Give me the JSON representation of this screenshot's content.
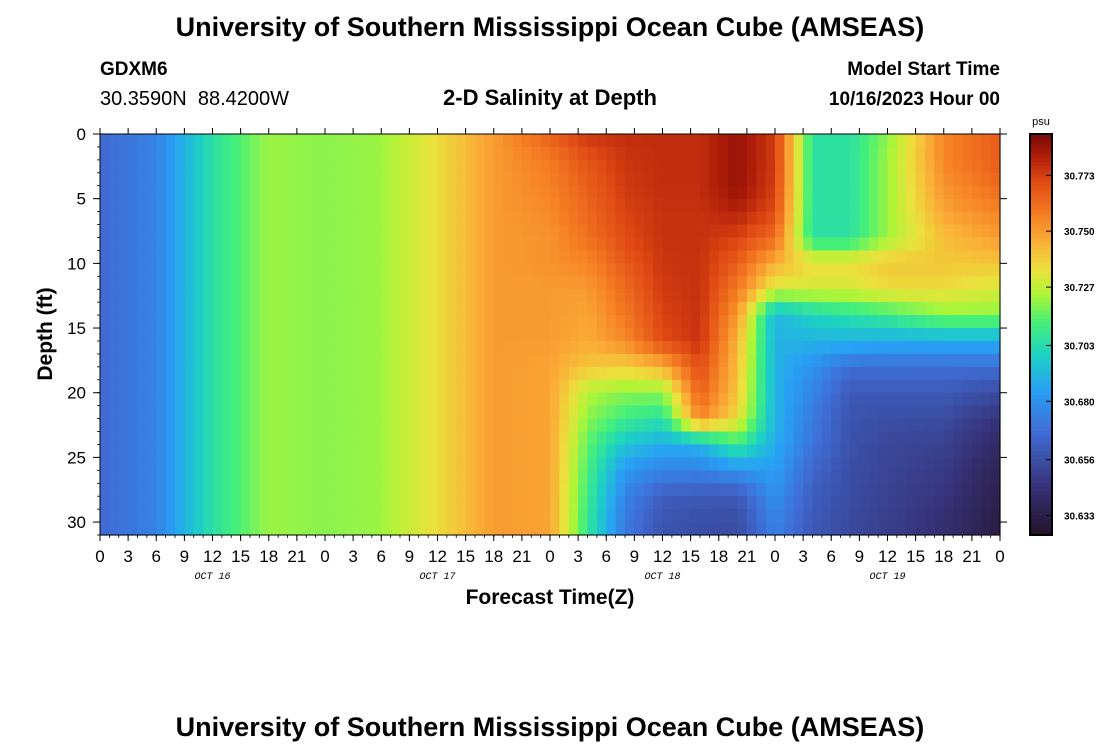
{
  "header": {
    "title": "University of Southern Mississippi Ocean Cube (AMSEAS)",
    "station_id": "GDXM6",
    "station_coords": "30.3590N  88.4200W",
    "subtitle": "2-D Salinity at Depth",
    "model_start_label": "Model Start Time",
    "model_start_value": "10/16/2023 Hour 00"
  },
  "footer": {
    "title": "University of Southern Mississippi Ocean Cube (AMSEAS)"
  },
  "chart_data": {
    "type": "heatmap",
    "title": "2-D Salinity at Depth",
    "xlabel": "Forecast Time(Z)",
    "ylabel": "Depth (ft)",
    "xlim": [
      0,
      96
    ],
    "ylim": [
      0,
      31
    ],
    "x_ticks": [
      0,
      3,
      6,
      9,
      12,
      15,
      18,
      21,
      24,
      27,
      30,
      33,
      36,
      39,
      42,
      45,
      48,
      51,
      54,
      57,
      60,
      63,
      66,
      69,
      72,
      75,
      78,
      81,
      84,
      87,
      90,
      93,
      96
    ],
    "x_tick_labels": [
      "0",
      "3",
      "6",
      "9",
      "12",
      "15",
      "18",
      "21",
      "0",
      "3",
      "6",
      "9",
      "12",
      "15",
      "18",
      "21",
      "0",
      "3",
      "6",
      "9",
      "12",
      "15",
      "18",
      "21",
      "0",
      "3",
      "6",
      "9",
      "12",
      "15",
      "18",
      "21",
      "0"
    ],
    "date_labels": [
      {
        "x": 12,
        "label": "OCT 16"
      },
      {
        "x": 36,
        "label": "OCT 17"
      },
      {
        "x": 60,
        "label": "OCT 18"
      },
      {
        "x": 84,
        "label": "OCT 19"
      }
    ],
    "y_ticks": [
      0,
      5,
      10,
      15,
      20,
      25,
      30
    ],
    "y_tick_labels": [
      "0",
      "5",
      "10",
      "15",
      "20",
      "25",
      "30"
    ],
    "colorbar": {
      "units": "psu",
      "min": 30.625,
      "max": 30.79,
      "ticks": [
        30.773,
        30.75,
        30.727,
        30.703,
        30.68,
        30.656,
        30.633
      ],
      "tick_labels": [
        "30.773",
        "30.750",
        "30.727",
        "30.703",
        "30.680",
        "30.656",
        "30.633"
      ]
    },
    "depths": [
      0,
      2,
      4,
      6,
      8,
      10,
      12,
      14,
      16,
      18,
      20,
      22,
      24,
      26,
      28,
      30
    ],
    "times": [
      0,
      6,
      12,
      18,
      24,
      30,
      36,
      42,
      48,
      52,
      56,
      60,
      64,
      68,
      72,
      76,
      80,
      84,
      90,
      96
    ],
    "values": [
      [
        30.666,
        30.675,
        30.705,
        30.722,
        30.72,
        30.722,
        30.735,
        30.75,
        30.765,
        30.775,
        30.777,
        30.777,
        30.777,
        30.785,
        30.774,
        30.705,
        30.705,
        30.72,
        30.755,
        30.766
      ],
      [
        30.666,
        30.675,
        30.705,
        30.722,
        30.72,
        30.722,
        30.735,
        30.75,
        30.758,
        30.768,
        30.775,
        30.777,
        30.777,
        30.785,
        30.774,
        30.705,
        30.705,
        30.722,
        30.755,
        30.766
      ],
      [
        30.666,
        30.675,
        30.705,
        30.722,
        30.72,
        30.722,
        30.735,
        30.75,
        30.756,
        30.765,
        30.774,
        30.777,
        30.777,
        30.785,
        30.773,
        30.705,
        30.705,
        30.722,
        30.752,
        30.762
      ],
      [
        30.666,
        30.675,
        30.705,
        30.722,
        30.72,
        30.722,
        30.735,
        30.75,
        30.754,
        30.763,
        30.772,
        30.776,
        30.776,
        30.78,
        30.77,
        30.705,
        30.705,
        30.722,
        30.748,
        30.756
      ],
      [
        30.666,
        30.675,
        30.705,
        30.722,
        30.72,
        30.722,
        30.735,
        30.75,
        30.752,
        30.76,
        30.77,
        30.776,
        30.776,
        30.772,
        30.762,
        30.705,
        30.705,
        30.722,
        30.742,
        30.75
      ],
      [
        30.666,
        30.675,
        30.705,
        30.722,
        30.72,
        30.722,
        30.735,
        30.75,
        30.752,
        30.755,
        30.766,
        30.775,
        30.776,
        30.765,
        30.745,
        30.735,
        30.735,
        30.74,
        30.74,
        30.74
      ],
      [
        30.666,
        30.675,
        30.705,
        30.722,
        30.72,
        30.722,
        30.735,
        30.75,
        30.75,
        30.75,
        30.762,
        30.774,
        30.776,
        30.758,
        30.73,
        30.73,
        30.73,
        30.735,
        30.735,
        30.73
      ],
      [
        30.666,
        30.675,
        30.705,
        30.722,
        30.72,
        30.722,
        30.735,
        30.75,
        30.75,
        30.748,
        30.758,
        30.772,
        30.776,
        30.75,
        30.69,
        30.7,
        30.705,
        30.71,
        30.72,
        30.72
      ],
      [
        30.666,
        30.675,
        30.705,
        30.722,
        30.72,
        30.722,
        30.735,
        30.75,
        30.75,
        30.746,
        30.754,
        30.77,
        30.776,
        30.744,
        30.69,
        30.69,
        30.69,
        30.688,
        30.688,
        30.688
      ],
      [
        30.666,
        30.675,
        30.705,
        30.722,
        30.72,
        30.722,
        30.735,
        30.75,
        30.748,
        30.74,
        30.738,
        30.745,
        30.77,
        30.742,
        30.69,
        30.68,
        30.668,
        30.668,
        30.668,
        30.668
      ],
      [
        30.666,
        30.675,
        30.705,
        30.722,
        30.72,
        30.722,
        30.735,
        30.75,
        30.748,
        30.725,
        30.72,
        30.72,
        30.765,
        30.74,
        30.69,
        30.675,
        30.66,
        30.66,
        30.66,
        30.655
      ],
      [
        30.666,
        30.675,
        30.705,
        30.722,
        30.72,
        30.722,
        30.735,
        30.75,
        30.748,
        30.72,
        30.71,
        30.705,
        30.755,
        30.735,
        30.69,
        30.672,
        30.658,
        30.656,
        30.655,
        30.645
      ],
      [
        30.666,
        30.675,
        30.705,
        30.722,
        30.72,
        30.722,
        30.735,
        30.75,
        30.748,
        30.715,
        30.695,
        30.688,
        30.69,
        30.71,
        30.688,
        30.67,
        30.657,
        30.653,
        30.651,
        30.64
      ],
      [
        30.666,
        30.675,
        30.705,
        30.722,
        30.72,
        30.722,
        30.735,
        30.75,
        30.748,
        30.712,
        30.682,
        30.675,
        30.675,
        30.68,
        30.684,
        30.665,
        30.656,
        30.652,
        30.648,
        30.636
      ],
      [
        30.666,
        30.675,
        30.705,
        30.722,
        30.72,
        30.722,
        30.735,
        30.75,
        30.748,
        30.71,
        30.675,
        30.662,
        30.66,
        30.66,
        30.68,
        30.662,
        30.655,
        30.651,
        30.646,
        30.634
      ],
      [
        30.666,
        30.675,
        30.705,
        30.722,
        30.72,
        30.722,
        30.735,
        30.75,
        30.748,
        30.708,
        30.672,
        30.658,
        30.656,
        30.655,
        30.675,
        30.66,
        30.654,
        30.65,
        30.643,
        30.632
      ]
    ]
  }
}
